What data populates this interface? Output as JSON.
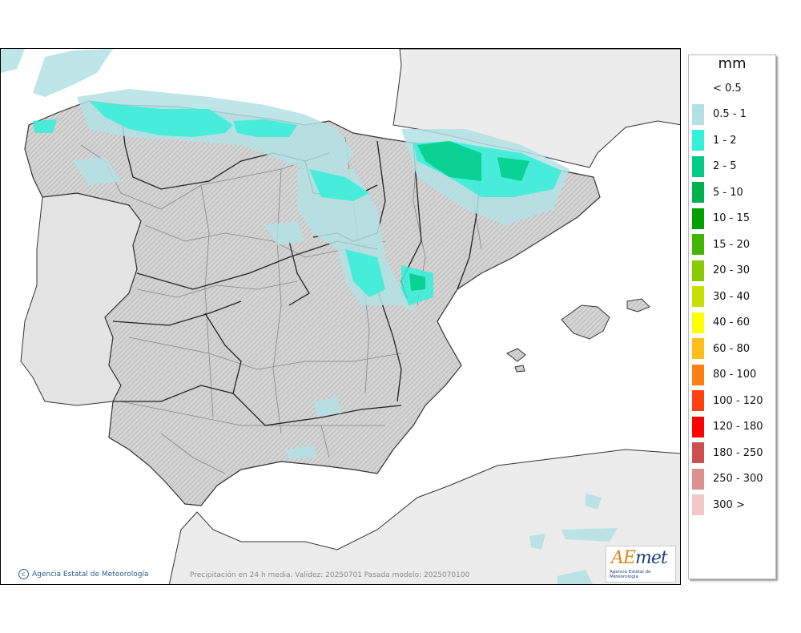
{
  "legend": {
    "unit": "mm",
    "items": [
      {
        "label": "< 0.5",
        "color": "#ffffff"
      },
      {
        "label": "0.5 - 1",
        "color": "#b3e0e3"
      },
      {
        "label": "1 - 2",
        "color": "#33f0d8"
      },
      {
        "label": "2 - 5",
        "color": "#00cc88"
      },
      {
        "label": "5 - 10",
        "color": "#00b050"
      },
      {
        "label": "10 - 15",
        "color": "#00a000"
      },
      {
        "label": "15 - 20",
        "color": "#44b400"
      },
      {
        "label": "20 - 30",
        "color": "#88cc00"
      },
      {
        "label": "30 - 40",
        "color": "#c8e000"
      },
      {
        "label": "40 - 60",
        "color": "#ffff00"
      },
      {
        "label": "60 - 80",
        "color": "#ffbf1a"
      },
      {
        "label": "80 - 100",
        "color": "#ff8010"
      },
      {
        "label": "100 - 120",
        "color": "#ff4010"
      },
      {
        "label": "120 - 180",
        "color": "#ff0000"
      },
      {
        "label": "180 - 250",
        "color": "#cc5050"
      },
      {
        "label": "250 - 300",
        "color": "#dd9090"
      },
      {
        "label": "300 >",
        "color": "#f0c8c8"
      }
    ]
  },
  "map": {
    "credit": "Agencia Estatal de Meteorología",
    "caption": "Precipitación en 24 h media. Validez: 20250701 Pasada modelo: 2025070100",
    "logo": {
      "word_a": "AE",
      "word_b": "met",
      "subtitle": "Agencia Estatal de Meteorología"
    }
  }
}
